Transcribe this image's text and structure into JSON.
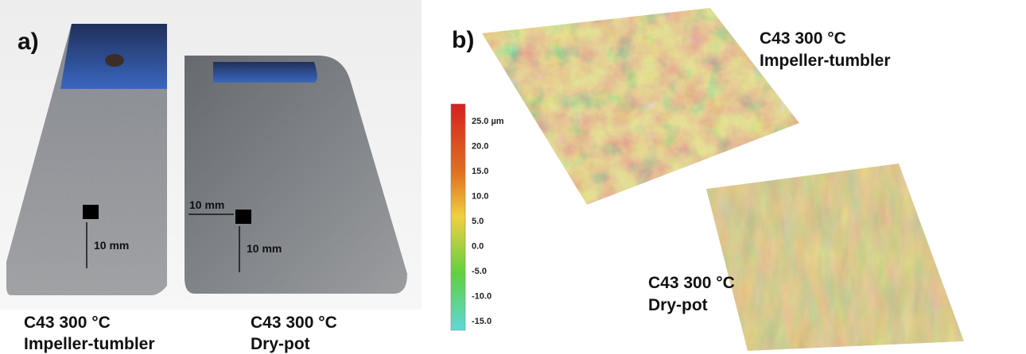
{
  "panel_a": {
    "label": "a)",
    "samples": [
      {
        "line1": "C43 300 °C",
        "line2": "Impeller-tumbler",
        "dim_vertical": "10 mm"
      },
      {
        "line1": "C43 300 °C",
        "line2": "Dry-pot",
        "dim_horizontal": "10 mm",
        "dim_vertical": "10 mm"
      }
    ]
  },
  "panel_b": {
    "label": "b)",
    "colorbar_labels": [
      "25.0 µm",
      "20.0",
      "15.0",
      "10.0",
      "5.0",
      "0.0",
      "-5.0",
      "-10.0",
      "-15.0"
    ],
    "surfaces": [
      {
        "line1": "C43 300 °C",
        "line2": "Impeller-tumbler"
      },
      {
        "line1": "C43 300 °C",
        "line2": "Dry-pot"
      }
    ]
  }
}
